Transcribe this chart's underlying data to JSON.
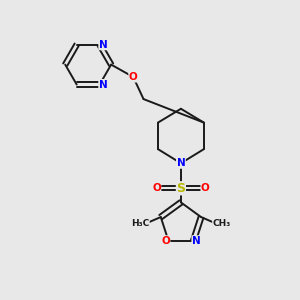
{
  "bg_color": "#e8e8e8",
  "bond_color": "#1a1a1a",
  "N_color": "#0000ff",
  "O_color": "#ff0000",
  "S_color": "#b8b800",
  "font_size": 7.5,
  "lw": 1.4,
  "figsize": [
    3.0,
    3.0
  ],
  "dpi": 100,
  "xlim": [
    0,
    10
  ],
  "ylim": [
    0,
    10
  ]
}
